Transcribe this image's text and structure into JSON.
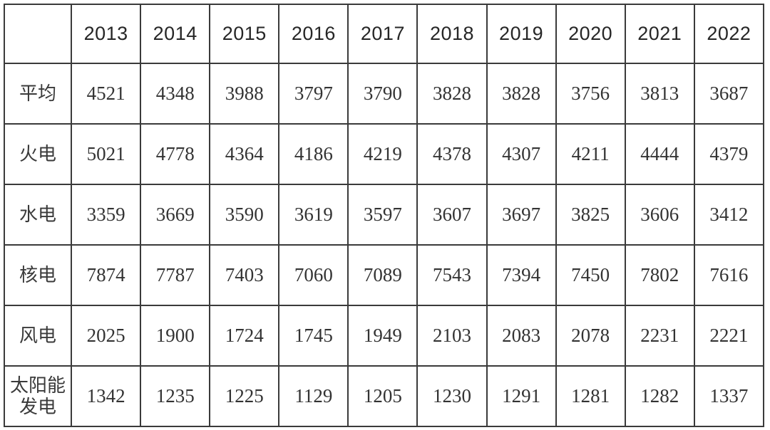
{
  "page": {
    "background": "#ffffff",
    "border_color": "#3a3a3a",
    "header_text_color": "#262626",
    "body_text_color": "#333333"
  },
  "table": {
    "corner_label": "",
    "header": {
      "years": [
        "2013",
        "2014",
        "2015",
        "2016",
        "2017",
        "2018",
        "2019",
        "2020",
        "2021",
        "2022"
      ]
    },
    "rows": [
      {
        "label": "平均",
        "values": [
          "4521",
          "4348",
          "3988",
          "3797",
          "3790",
          "3828",
          "3828",
          "3756",
          "3813",
          "3687"
        ]
      },
      {
        "label": "火电",
        "values": [
          "5021",
          "4778",
          "4364",
          "4186",
          "4219",
          "4378",
          "4307",
          "4211",
          "4444",
          "4379"
        ]
      },
      {
        "label": "水电",
        "values": [
          "3359",
          "3669",
          "3590",
          "3619",
          "3597",
          "3607",
          "3697",
          "3825",
          "3606",
          "3412"
        ]
      },
      {
        "label": "核电",
        "values": [
          "7874",
          "7787",
          "7403",
          "7060",
          "7089",
          "7543",
          "7394",
          "7450",
          "7802",
          "7616"
        ]
      },
      {
        "label": "风电",
        "values": [
          "2025",
          "1900",
          "1724",
          "1745",
          "1949",
          "2103",
          "2083",
          "2078",
          "2231",
          "2221"
        ]
      },
      {
        "label": "太阳能发电",
        "values": [
          "1342",
          "1235",
          "1225",
          "1129",
          "1205",
          "1230",
          "1291",
          "1281",
          "1282",
          "1337"
        ]
      }
    ]
  },
  "chart_data": {
    "type": "table",
    "columns": [
      "",
      "2013",
      "2014",
      "2015",
      "2016",
      "2017",
      "2018",
      "2019",
      "2020",
      "2021",
      "2022"
    ],
    "rows": [
      [
        "平均",
        4521,
        4348,
        3988,
        3797,
        3790,
        3828,
        3828,
        3756,
        3813,
        3687
      ],
      [
        "火电",
        5021,
        4778,
        4364,
        4186,
        4219,
        4378,
        4307,
        4211,
        4444,
        4379
      ],
      [
        "水电",
        3359,
        3669,
        3590,
        3619,
        3597,
        3607,
        3697,
        3825,
        3606,
        3412
      ],
      [
        "核电",
        7874,
        7787,
        7403,
        7060,
        7089,
        7543,
        7394,
        7450,
        7802,
        7616
      ],
      [
        "风电",
        2025,
        1900,
        1724,
        1745,
        1949,
        2103,
        2083,
        2078,
        2231,
        2221
      ],
      [
        "太阳能发电",
        1342,
        1235,
        1225,
        1129,
        1205,
        1230,
        1291,
        1281,
        1282,
        1337
      ]
    ]
  }
}
